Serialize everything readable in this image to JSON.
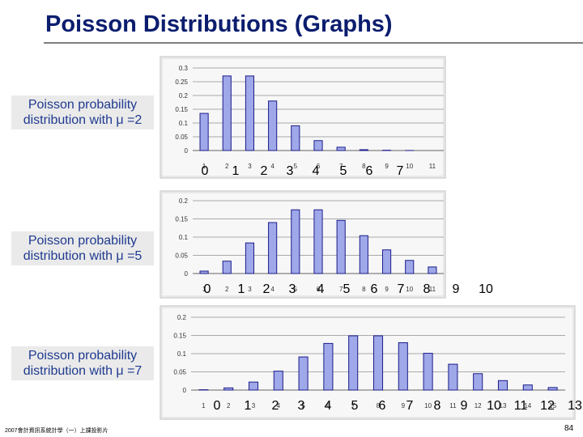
{
  "slide": {
    "title": "Poisson Distributions (Graphs)",
    "footer": "2007會計資訊系統計學（一）上課投影片",
    "page_number": "84"
  },
  "panels": [
    {
      "caption_line1": "Poisson probability",
      "caption_line2": "distribution with μ =2",
      "overlay_labels": [
        "0",
        "1",
        "2",
        "3",
        "4",
        "5",
        "6",
        "7"
      ]
    },
    {
      "caption_line1": "Poisson probability",
      "caption_line2": "distribution with μ =5",
      "overlay_labels": [
        "0",
        "1",
        "2",
        "3",
        "4",
        "5",
        "6",
        "7",
        "8",
        "9",
        "10"
      ]
    },
    {
      "caption_line1": "Poisson probability",
      "caption_line2": "distribution with μ =7",
      "overlay_labels": [
        "0",
        "1",
        "2",
        "3",
        "4",
        "5",
        "6",
        "7",
        "8",
        "9",
        "10",
        "11",
        "12",
        "13"
      ]
    }
  ],
  "chart_data": [
    {
      "type": "bar",
      "bar_color": "#9fa8e8",
      "border_color": "#1c1c8a",
      "categories": [
        "1",
        "2",
        "3",
        "4",
        "5",
        "6",
        "7",
        "8",
        "9",
        "10",
        "11"
      ],
      "values": [
        0.135,
        0.271,
        0.271,
        0.18,
        0.09,
        0.036,
        0.012,
        0.003,
        0.001,
        0.0002,
        0.0
      ],
      "ylim": [
        0,
        0.3
      ],
      "yticks": [
        "0",
        "0.05",
        "0.1",
        "0.15",
        "0.2",
        "0.25",
        "0.3"
      ],
      "grid": true
    },
    {
      "type": "bar",
      "bar_color": "#9fa8e8",
      "border_color": "#1c1c8a",
      "categories": [
        "1",
        "2",
        "3",
        "4",
        "5",
        "6",
        "7",
        "8",
        "9",
        "10",
        "11"
      ],
      "values": [
        0.0067,
        0.034,
        0.084,
        0.14,
        0.175,
        0.175,
        0.146,
        0.104,
        0.065,
        0.036,
        0.018
      ],
      "ylim": [
        0,
        0.2
      ],
      "yticks": [
        "0",
        "0.05",
        "0.1",
        "0.15",
        "0.2"
      ],
      "grid": true
    },
    {
      "type": "bar",
      "bar_color": "#9fa8e8",
      "border_color": "#1c1c8a",
      "categories": [
        "1",
        "2",
        "3",
        "4",
        "5",
        "6",
        "7",
        "8",
        "9",
        "10",
        "11",
        "12",
        "13",
        "14",
        "15"
      ],
      "values": [
        0.0009,
        0.006,
        0.022,
        0.052,
        0.091,
        0.128,
        0.149,
        0.149,
        0.13,
        0.101,
        0.071,
        0.045,
        0.026,
        0.014,
        0.007
      ],
      "ylim": [
        0,
        0.2
      ],
      "yticks": [
        "0",
        "0.05",
        "0.1",
        "0.15",
        "0.2"
      ],
      "grid": true
    }
  ]
}
